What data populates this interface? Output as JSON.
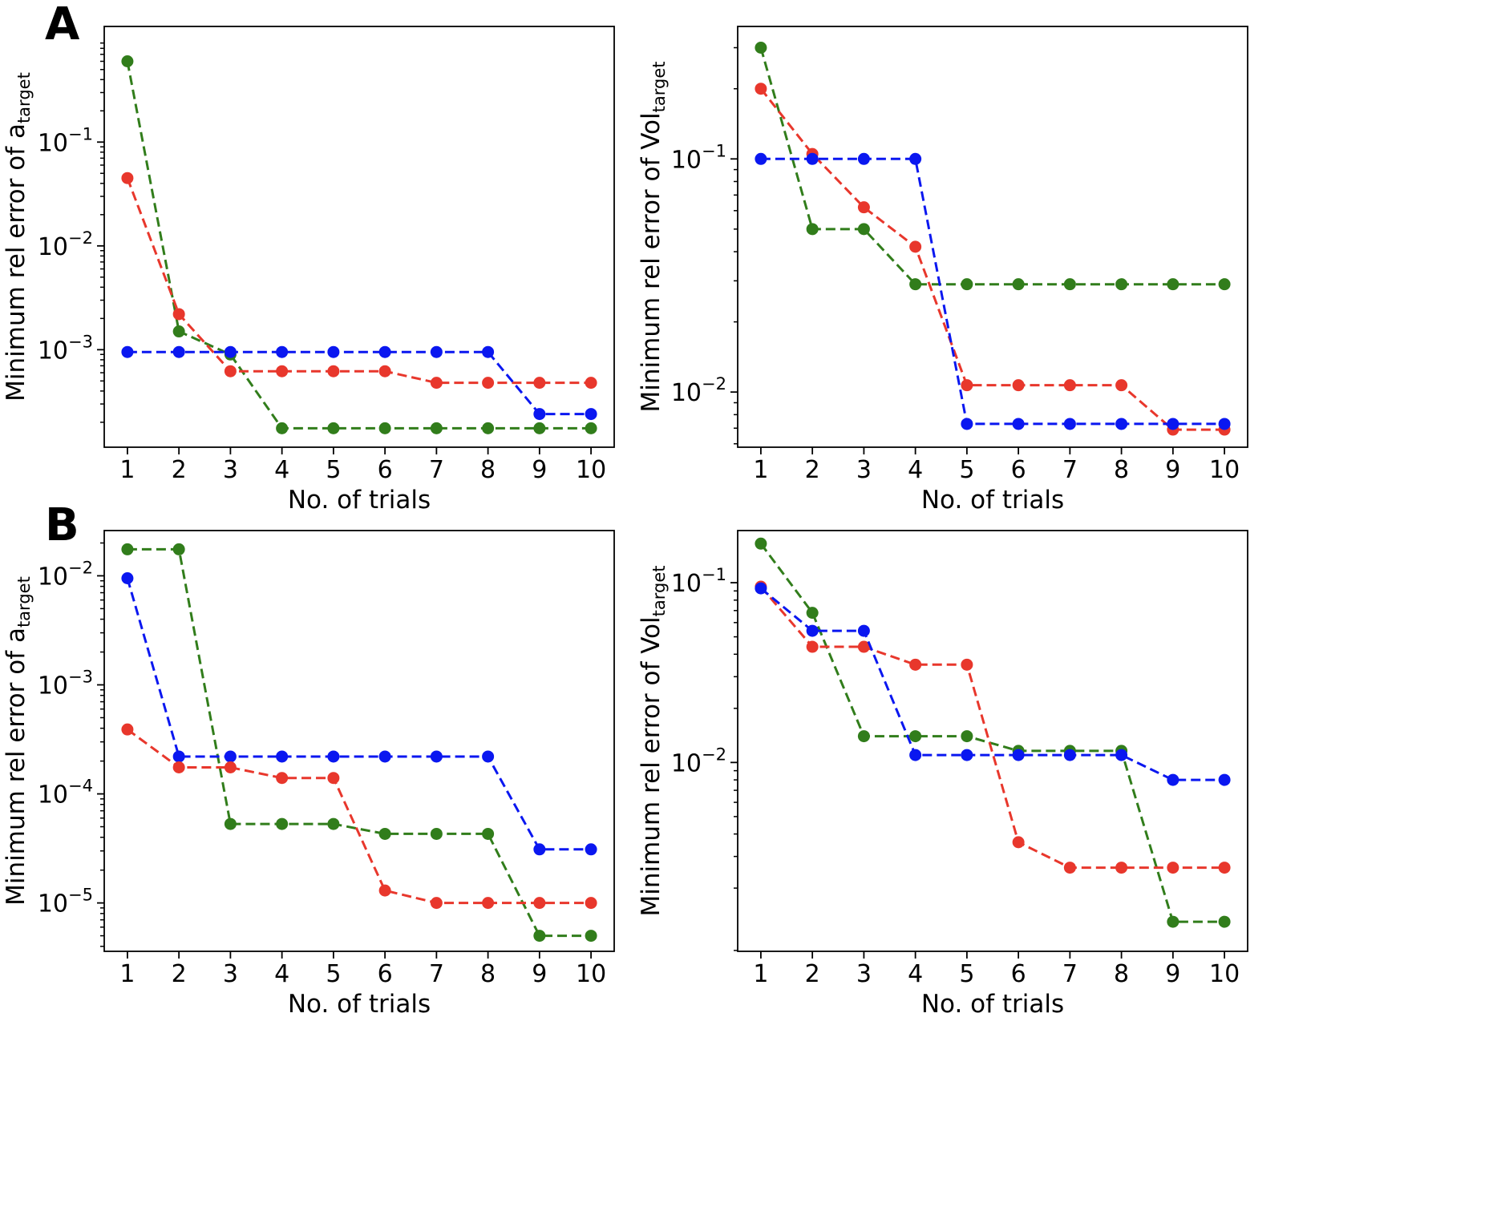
{
  "panel_labels": [
    "A",
    "B"
  ],
  "colors": {
    "red": "#e8372c",
    "blue": "#0a17f0",
    "green": "#317d1b"
  },
  "chart_data": [
    {
      "type": "line",
      "panel": "A",
      "xlabel": "No. of trials",
      "ylabel": "Minimum rel error of a",
      "ylabel_sub": "target",
      "yscale": "log",
      "ylim": [
        0.000115,
        1.3
      ],
      "xlim": [
        0.55,
        10.45
      ],
      "x": [
        1,
        2,
        3,
        4,
        5,
        6,
        7,
        8,
        9,
        10
      ],
      "xticks": [
        "1",
        "2",
        "3",
        "4",
        "5",
        "6",
        "7",
        "8",
        "9",
        "10"
      ],
      "yticks": [
        {
          "value": 0.1,
          "base": "10",
          "exp": "−1"
        },
        {
          "value": 0.01,
          "base": "10",
          "exp": "−2"
        },
        {
          "value": 0.001,
          "base": "10",
          "exp": "−3"
        }
      ],
      "series": [
        {
          "name": "green",
          "color": "#317d1b",
          "values": [
            0.6,
            0.0015,
            0.0009,
            0.000175,
            0.000175,
            0.000175,
            0.000175,
            0.000175,
            0.000175,
            0.000175
          ]
        },
        {
          "name": "red",
          "color": "#e8372c",
          "values": [
            0.045,
            0.0022,
            0.00062,
            0.00062,
            0.00062,
            0.00062,
            0.00048,
            0.00048,
            0.00048,
            0.00048
          ]
        },
        {
          "name": "blue",
          "color": "#0a17f0",
          "values": [
            0.00095,
            0.00095,
            0.00095,
            0.00095,
            0.00095,
            0.00095,
            0.00095,
            0.00095,
            0.00024,
            0.00024
          ]
        }
      ]
    },
    {
      "type": "line",
      "panel": "A-right",
      "xlabel": "No. of trials",
      "ylabel": "Minimum rel error of Vol",
      "ylabel_sub": "target",
      "yscale": "log",
      "ylim": [
        0.0058,
        0.37
      ],
      "xlim": [
        0.55,
        10.45
      ],
      "x": [
        1,
        2,
        3,
        4,
        5,
        6,
        7,
        8,
        9,
        10
      ],
      "xticks": [
        "1",
        "2",
        "3",
        "4",
        "5",
        "6",
        "7",
        "8",
        "9",
        "10"
      ],
      "yticks": [
        {
          "value": 0.1,
          "base": "10",
          "exp": "−1"
        },
        {
          "value": 0.01,
          "base": "10",
          "exp": "−2"
        }
      ],
      "series": [
        {
          "name": "green",
          "color": "#317d1b",
          "values": [
            0.3,
            0.05,
            0.05,
            0.029,
            0.029,
            0.029,
            0.029,
            0.029,
            0.029,
            0.029
          ]
        },
        {
          "name": "red",
          "color": "#e8372c",
          "values": [
            0.2,
            0.105,
            0.062,
            0.042,
            0.0107,
            0.0107,
            0.0107,
            0.0107,
            0.0069,
            0.0069
          ]
        },
        {
          "name": "blue",
          "color": "#0a17f0",
          "values": [
            0.1,
            0.1,
            0.1,
            0.1,
            0.0073,
            0.0073,
            0.0073,
            0.0073,
            0.0073,
            0.0073
          ]
        }
      ]
    },
    {
      "type": "line",
      "panel": "B",
      "xlabel": "No. of trials",
      "ylabel": "Minimum rel error of a",
      "ylabel_sub": "target",
      "yscale": "log",
      "ylim": [
        3.6e-06,
        0.026
      ],
      "xlim": [
        0.55,
        10.45
      ],
      "x": [
        1,
        2,
        3,
        4,
        5,
        6,
        7,
        8,
        9,
        10
      ],
      "xticks": [
        "1",
        "2",
        "3",
        "4",
        "5",
        "6",
        "7",
        "8",
        "9",
        "10"
      ],
      "yticks": [
        {
          "value": 0.01,
          "base": "10",
          "exp": "−2"
        },
        {
          "value": 0.001,
          "base": "10",
          "exp": "−3"
        },
        {
          "value": 0.0001,
          "base": "10",
          "exp": "−4"
        },
        {
          "value": 1e-05,
          "base": "10",
          "exp": "−5"
        }
      ],
      "series": [
        {
          "name": "green",
          "color": "#317d1b",
          "values": [
            0.0175,
            0.0175,
            5.3e-05,
            5.3e-05,
            5.3e-05,
            4.3e-05,
            4.3e-05,
            4.3e-05,
            5e-06,
            5e-06
          ]
        },
        {
          "name": "blue",
          "color": "#0a17f0",
          "values": [
            0.0095,
            0.00022,
            0.00022,
            0.00022,
            0.00022,
            0.00022,
            0.00022,
            0.00022,
            3.1e-05,
            3.1e-05
          ]
        },
        {
          "name": "red",
          "color": "#e8372c",
          "values": [
            0.00039,
            0.000175,
            0.000175,
            0.00014,
            0.00014,
            1.3e-05,
            1e-05,
            1e-05,
            1e-05,
            1e-05
          ]
        }
      ]
    },
    {
      "type": "line",
      "panel": "B-right",
      "xlabel": "No. of trials",
      "ylabel": "Minimum rel error of Vol",
      "ylabel_sub": "target",
      "yscale": "log",
      "ylim": [
        0.00089,
        0.195
      ],
      "xlim": [
        0.55,
        10.45
      ],
      "x": [
        1,
        2,
        3,
        4,
        5,
        6,
        7,
        8,
        9,
        10
      ],
      "xticks": [
        "1",
        "2",
        "3",
        "4",
        "5",
        "6",
        "7",
        "8",
        "9",
        "10"
      ],
      "yticks": [
        {
          "value": 0.1,
          "base": "10",
          "exp": "−1"
        },
        {
          "value": 0.01,
          "base": "10",
          "exp": "−2"
        }
      ],
      "series": [
        {
          "name": "green",
          "color": "#317d1b",
          "values": [
            0.165,
            0.068,
            0.014,
            0.014,
            0.014,
            0.0116,
            0.0116,
            0.0116,
            0.0013,
            0.0013
          ]
        },
        {
          "name": "red",
          "color": "#e8372c",
          "values": [
            0.095,
            0.044,
            0.044,
            0.035,
            0.035,
            0.0036,
            0.0026,
            0.0026,
            0.0026,
            0.0026
          ]
        },
        {
          "name": "blue",
          "color": "#0a17f0",
          "values": [
            0.093,
            0.054,
            0.054,
            0.011,
            0.011,
            0.011,
            0.011,
            0.011,
            0.008,
            0.008
          ]
        }
      ]
    }
  ]
}
